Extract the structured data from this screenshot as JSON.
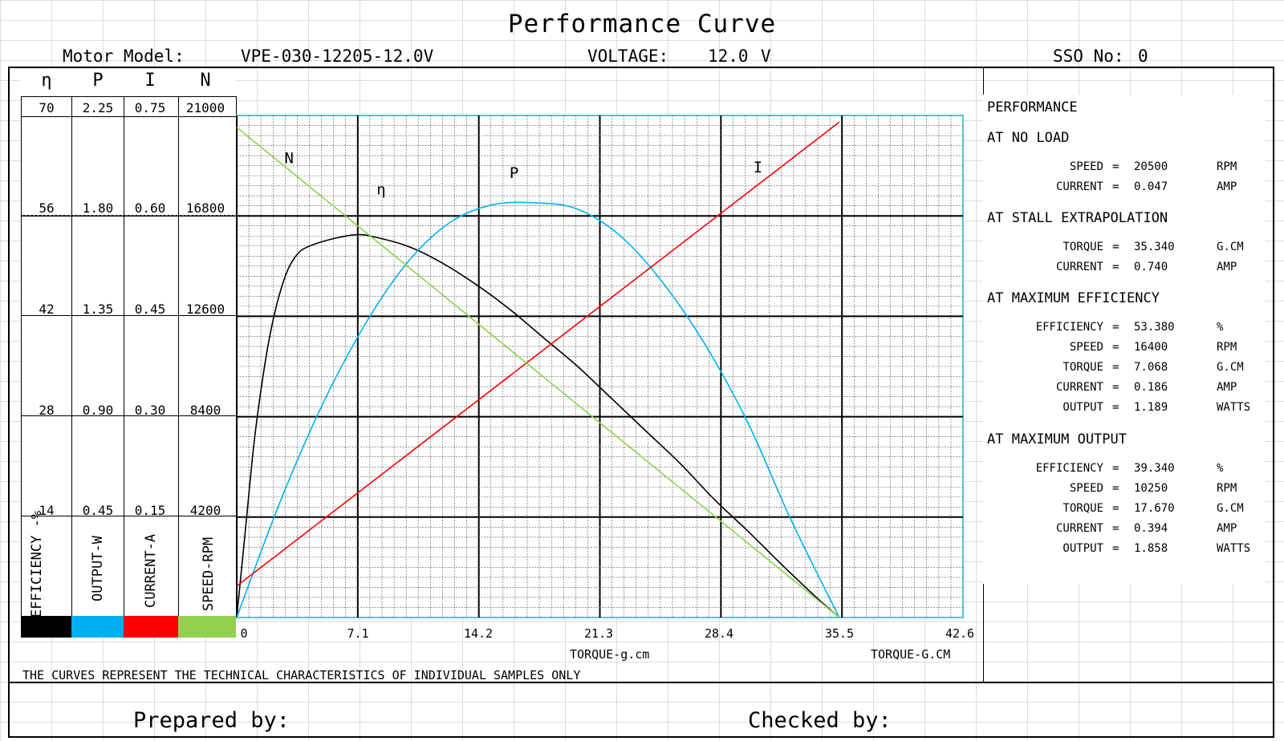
{
  "title": "Performance Curve",
  "header": {
    "motor_model_label": "Motor Model:",
    "motor_model_value": "VPE-030-12205-12.0V",
    "voltage_label": "VOLTAGE:",
    "voltage_value": "12.0",
    "voltage_unit": "V",
    "sso_label": "SSO No:",
    "sso_value": "0"
  },
  "left_axes": {
    "symbols": [
      "η",
      "P",
      "I",
      "N"
    ],
    "rows": [
      [
        "70",
        "2.25",
        "0.75",
        "21000"
      ],
      [
        "56",
        "1.80",
        "0.60",
        "16800"
      ],
      [
        "42",
        "1.35",
        "0.45",
        "12600"
      ],
      [
        "28",
        "0.90",
        "0.30",
        "8400"
      ],
      [
        "14",
        "0.45",
        "0.15",
        "4200"
      ]
    ],
    "labels": [
      "EFFICIENCY -%",
      "OUTPUT-W",
      "CURRENT-A",
      "SPEED-RPM"
    ],
    "swatch_colors": [
      "#000000",
      "#00b0f0",
      "#ff0000",
      "#92d050"
    ]
  },
  "chart_data": {
    "type": "line",
    "x_ticks": [
      "0",
      "7.1",
      "14.2",
      "21.3",
      "28.4",
      "35.5",
      "42.6"
    ],
    "xlim": [
      0,
      42.6
    ],
    "xlabel": "TORQUE-g.cm",
    "xlabel_right": "TORQUE-G.CM",
    "series": [
      {
        "name": "η",
        "axis_range": [
          0,
          70
        ],
        "color": "#000000",
        "x": [
          0,
          0.5,
          1,
          1.5,
          2,
          2.5,
          3,
          3.5,
          4,
          5,
          6,
          7.068,
          8,
          10,
          12,
          14,
          16,
          18,
          20,
          22,
          24,
          26,
          28,
          30,
          32,
          34,
          35.34
        ],
        "y": [
          0,
          12,
          24,
          33,
          40,
          45,
          48.5,
          50.5,
          51.5,
          52.4,
          53,
          53.38,
          53.1,
          51.8,
          49.5,
          46.5,
          43,
          39,
          35,
          30.5,
          26,
          21.5,
          16.5,
          12,
          7.3,
          2.8,
          0
        ]
      },
      {
        "name": "P",
        "axis_range": [
          0,
          2.25
        ],
        "color": "#00b0f0",
        "x": [
          0,
          2.5,
          5,
          7.5,
          10,
          12.5,
          15,
          17.67,
          20,
          22.5,
          25,
          27.5,
          30,
          32.5,
          35.34
        ],
        "y": [
          0,
          0.51,
          0.95,
          1.31,
          1.59,
          1.77,
          1.85,
          1.858,
          1.83,
          1.71,
          1.5,
          1.22,
          0.87,
          0.44,
          0
        ]
      },
      {
        "name": "I",
        "axis_range": [
          0,
          0.75
        ],
        "color": "#ff0000",
        "x": [
          0,
          35.34
        ],
        "y": [
          0.047,
          0.74
        ]
      },
      {
        "name": "N",
        "axis_range": [
          0,
          21000
        ],
        "color": "#92d050",
        "x": [
          0,
          35.34
        ],
        "y": [
          20500,
          0
        ]
      }
    ]
  },
  "performance": {
    "heading": "PERFORMANCE",
    "sections": [
      {
        "title": "AT NO LOAD",
        "rows": [
          {
            "label": "SPEED",
            "eq": "=",
            "value": "20500",
            "unit": "RPM"
          },
          {
            "label": "CURRENT",
            "eq": "=",
            "value": "0.047",
            "unit": "AMP"
          }
        ]
      },
      {
        "title": "AT STALL EXTRAPOLATION",
        "rows": [
          {
            "label": "TORQUE",
            "eq": "=",
            "value": "35.340",
            "unit": "G.CM"
          },
          {
            "label": "CURRENT",
            "eq": "=",
            "value": "0.740",
            "unit": "AMP"
          }
        ]
      },
      {
        "title": "AT MAXIMUM EFFICIENCY",
        "rows": [
          {
            "label": "EFFICIENCY",
            "eq": "=",
            "value": "53.380",
            "unit": "%"
          },
          {
            "label": "SPEED",
            "eq": "=",
            "value": "16400",
            "unit": "RPM"
          },
          {
            "label": "TORQUE",
            "eq": "=",
            "value": "7.068",
            "unit": "G.CM"
          },
          {
            "label": "CURRENT",
            "eq": "=",
            "value": "0.186",
            "unit": "AMP"
          },
          {
            "label": "OUTPUT",
            "eq": "=",
            "value": "1.189",
            "unit": "WATTS"
          }
        ]
      },
      {
        "title": "AT MAXIMUM OUTPUT",
        "rows": [
          {
            "label": "EFFICIENCY",
            "eq": "=",
            "value": "39.340",
            "unit": "%"
          },
          {
            "label": "SPEED",
            "eq": "=",
            "value": "10250",
            "unit": "RPM"
          },
          {
            "label": "TORQUE",
            "eq": "=",
            "value": "17.670",
            "unit": "G.CM"
          },
          {
            "label": "CURRENT",
            "eq": "=",
            "value": "0.394",
            "unit": "AMP"
          },
          {
            "label": "OUTPUT",
            "eq": "=",
            "value": "1.858",
            "unit": "WATTS"
          }
        ]
      }
    ]
  },
  "footer": {
    "note": "THE CURVES REPRESENT THE TECHNICAL CHARACTERISTICS OF INDIVIDUAL SAMPLES ONLY",
    "prepared_by": "Prepared by:",
    "checked_by": "Checked by:"
  }
}
